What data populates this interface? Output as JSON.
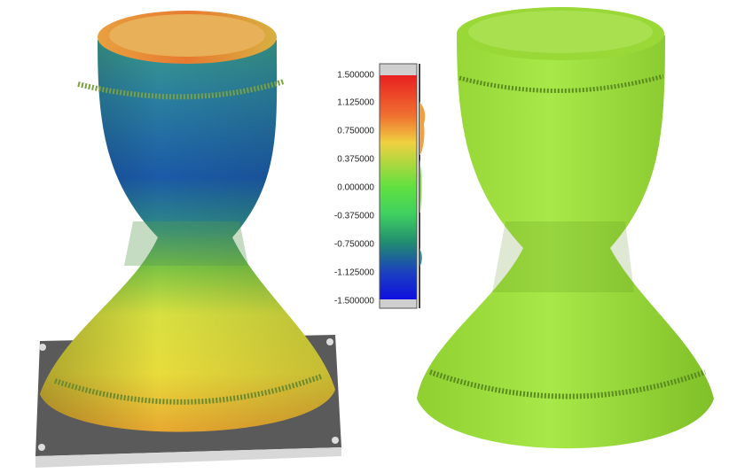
{
  "scale": {
    "labels": [
      "1.500000",
      "1.125000",
      "0.750000",
      "0.375000",
      "0.000000",
      "-0.375000",
      "-0.750000",
      "-1.125000",
      "-1.500000"
    ]
  }
}
